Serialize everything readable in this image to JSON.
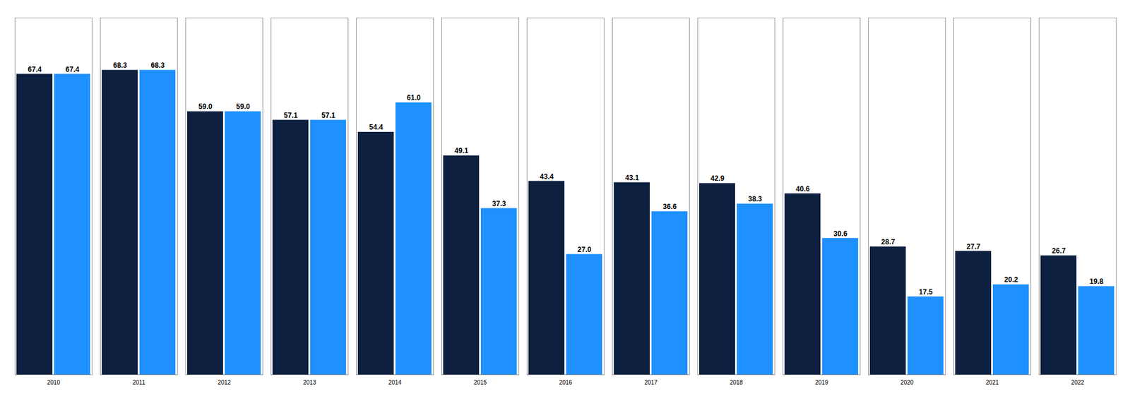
{
  "chart_data": {
    "type": "bar",
    "categories": [
      "2010",
      "2011",
      "2012",
      "2013",
      "2014",
      "2015",
      "2016",
      "2017",
      "2018",
      "2019",
      "2020",
      "2021",
      "2022"
    ],
    "series": [
      {
        "color": "#0D2040",
        "values": [
          67.4,
          68.3,
          59.0,
          57.1,
          54.4,
          49.1,
          43.4,
          43.1,
          42.9,
          40.6,
          28.7,
          27.7,
          26.7
        ],
        "value_labels": [
          "67.4",
          "68.3",
          "59.0",
          "57.1",
          "54.4",
          "49.1",
          "43.4",
          "43.1",
          "42.9",
          "40.6",
          "28.7",
          "27.7",
          "26.7"
        ]
      },
      {
        "color": "#1E90FF",
        "values": [
          67.4,
          68.3,
          59.0,
          57.1,
          61.0,
          37.3,
          27.0,
          36.6,
          38.3,
          30.6,
          17.5,
          20.2,
          19.8
        ],
        "value_labels": [
          "67.4",
          "68.3",
          "59.0",
          "57.1",
          "61.0",
          "37.3",
          "27.0",
          "36.6",
          "38.3",
          "30.6",
          "17.5",
          "20.2",
          "19.8"
        ]
      }
    ],
    "ylim": [
      0,
      80
    ],
    "data_labels": true,
    "tick_labels": "x"
  }
}
